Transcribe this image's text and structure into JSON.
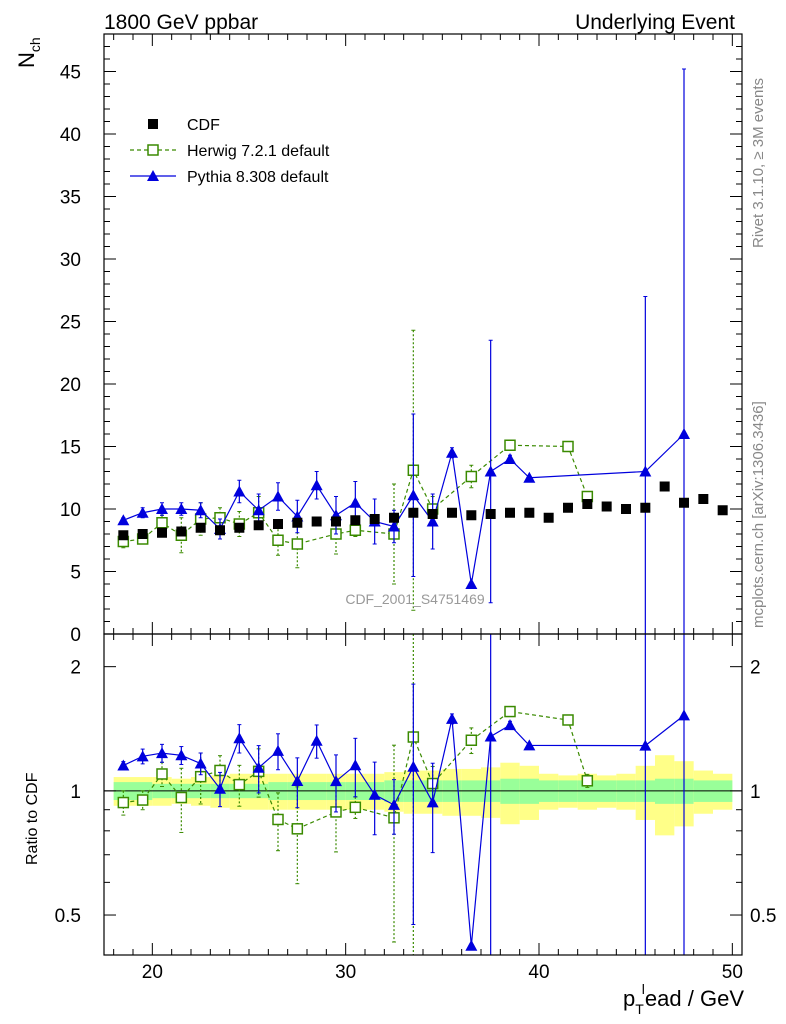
{
  "chart_data": {
    "type": "scatter",
    "header_left": "1800 GeV ppbar",
    "header_right": "Underlying Event",
    "ylabel_main": "N",
    "ylabel_main_sub": "ch",
    "ylabel_ratio": "Ratio to CDF",
    "xlabel_main": "p",
    "xlabel_sub": "T",
    "xlabel_sup": "l",
    "xlabel_rest": "ead / GeV",
    "watermark": "CDF_2001_S4751469",
    "side_top": "Rivet 3.1.10, ≥ 3M events",
    "side_bottom": "mcplots.cern.ch [arXiv:1306.3436]",
    "xlim": [
      17.5,
      50.5
    ],
    "ylim_main": [
      0,
      48
    ],
    "ylim_ratio": [
      0.4,
      2.4
    ],
    "ratio_scale": "log",
    "x_ticks": [
      "20",
      "30",
      "40",
      "50"
    ],
    "y_ticks_main": [
      "0",
      "5",
      "10",
      "15",
      "20",
      "25",
      "30",
      "35",
      "40",
      "45"
    ],
    "y_ticks_ratio": [
      "0.5",
      "1",
      "2"
    ],
    "legend_position": "top-left",
    "legend": [
      "CDF",
      "Herwig 7.2.1 default",
      "Pythia 8.308 default"
    ],
    "colors": {
      "cdf": "#000000",
      "herwig": "#3a8a00",
      "pythia": "#0000dd",
      "band_inner": "#99ff99",
      "band_outer": "#ffff88"
    },
    "series": [
      {
        "name": "CDF",
        "x": [
          18.5,
          19.5,
          20.5,
          21.5,
          22.5,
          23.5,
          24.5,
          25.5,
          26.5,
          27.5,
          28.5,
          29.5,
          30.5,
          31.5,
          32.5,
          33.5,
          34.5,
          35.5,
          36.5,
          37.5,
          38.5,
          39.5,
          40.5,
          41.5,
          42.5,
          43.5,
          44.5,
          45.5,
          46.5,
          47.5,
          48.5,
          49.5
        ],
        "y": [
          7.9,
          8.0,
          8.1,
          8.2,
          8.5,
          8.3,
          8.5,
          8.7,
          8.8,
          8.9,
          9.0,
          9.0,
          9.1,
          9.2,
          9.3,
          9.7,
          9.6,
          9.7,
          9.5,
          9.6,
          9.7,
          9.7,
          9.3,
          10.1,
          10.4,
          10.2,
          10.0,
          10.1,
          11.8,
          10.5,
          10.8,
          9.9
        ],
        "rel_err_inner": [
          0.05,
          0.05,
          0.04,
          0.04,
          0.04,
          0.04,
          0.04,
          0.04,
          0.05,
          0.05,
          0.05,
          0.05,
          0.05,
          0.05,
          0.06,
          0.06,
          0.06,
          0.06,
          0.06,
          0.06,
          0.07,
          0.07,
          0.06,
          0.06,
          0.06,
          0.06,
          0.06,
          0.06,
          0.07,
          0.07,
          0.06,
          0.06
        ],
        "rel_err_outer": [
          0.08,
          0.08,
          0.08,
          0.07,
          0.08,
          0.09,
          0.1,
          0.1,
          0.1,
          0.1,
          0.1,
          0.1,
          0.1,
          0.1,
          0.11,
          0.12,
          0.12,
          0.13,
          0.13,
          0.14,
          0.17,
          0.15,
          0.1,
          0.09,
          0.1,
          0.09,
          0.1,
          0.15,
          0.22,
          0.18,
          0.12,
          0.1
        ]
      },
      {
        "name": "Herwig 7.2.1 default",
        "x": [
          18.5,
          19.5,
          20.5,
          21.5,
          22.5,
          23.5,
          24.5,
          25.5,
          26.5,
          27.5,
          29.5,
          30.5,
          32.5,
          33.5,
          34.5,
          36.5,
          38.5,
          41.5,
          42.5
        ],
        "y": [
          7.4,
          7.6,
          8.9,
          7.9,
          9.2,
          9.3,
          8.8,
          9.7,
          7.5,
          7.2,
          8.0,
          8.3,
          8.0,
          13.1,
          10.0,
          12.6,
          15.1,
          15.0,
          11.0
        ],
        "err": [
          0.5,
          0.4,
          0.6,
          1.4,
          1.3,
          0.8,
          1.0,
          1.3,
          1.2,
          1.9,
          1.6,
          0.5,
          4.0,
          11.2,
          1.0,
          0.9,
          0.2,
          0.2,
          0.4
        ]
      },
      {
        "name": "Pythia 8.308 default",
        "x": [
          18.5,
          19.5,
          20.5,
          21.5,
          22.5,
          23.5,
          24.5,
          25.5,
          26.5,
          27.5,
          28.5,
          29.5,
          30.5,
          31.5,
          32.5,
          33.5,
          34.5,
          35.5,
          36.5,
          37.5,
          38.5,
          39.5,
          45.5,
          47.5
        ],
        "y": [
          9.1,
          9.7,
          10.0,
          10.0,
          9.9,
          8.4,
          11.4,
          9.9,
          11.0,
          9.4,
          11.9,
          9.5,
          10.5,
          9.0,
          8.6,
          11.1,
          9.0,
          14.5,
          4.0,
          13.0,
          14.0,
          12.5,
          13.0,
          16.0
        ],
        "err": [
          0.2,
          0.4,
          0.5,
          0.5,
          0.6,
          0.8,
          0.9,
          1.3,
          1.1,
          1.3,
          1.1,
          1.5,
          1.7,
          1.8,
          1.3,
          6.5,
          2.2,
          0.4,
          0.0,
          10.5,
          0.3,
          0.0,
          14.0,
          29.2
        ]
      }
    ]
  }
}
